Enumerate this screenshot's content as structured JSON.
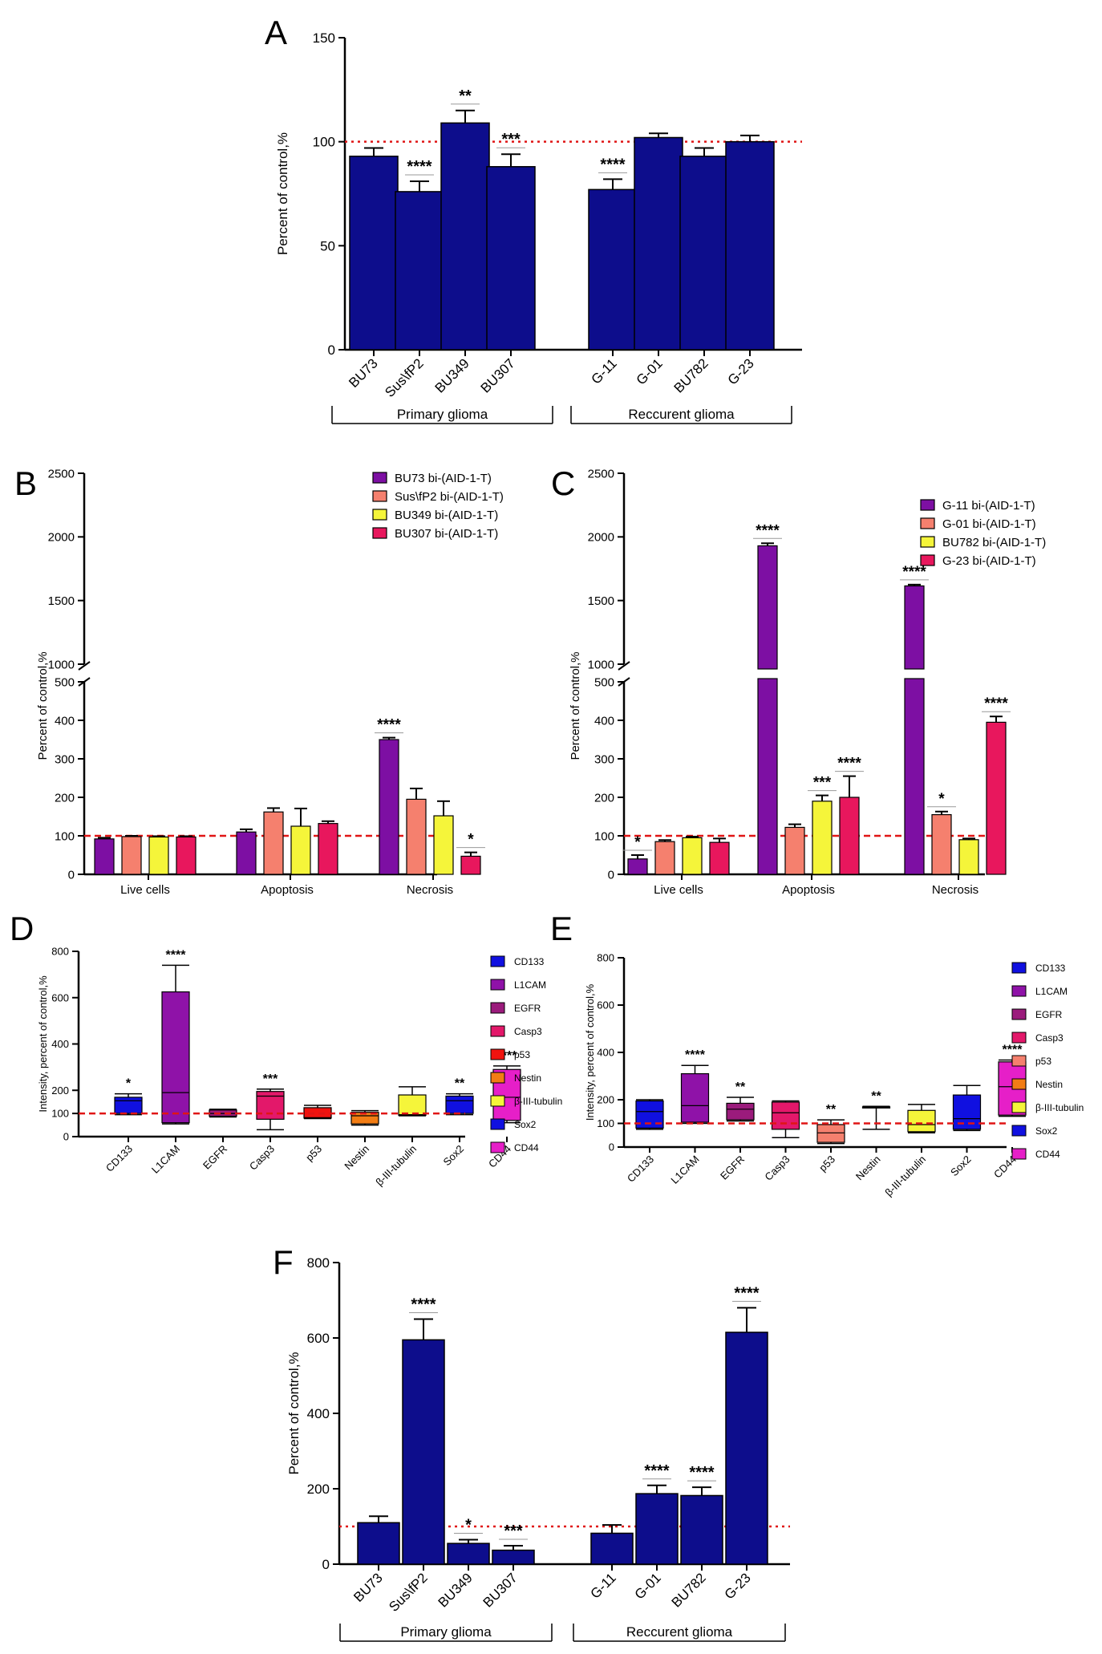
{
  "chart_data": [
    {
      "id": "A",
      "panel_label": "A",
      "type": "bar",
      "ylabel": "Percent of control,%",
      "ylim": [
        0,
        150
      ],
      "yticks": [
        0,
        50,
        100,
        150
      ],
      "reference_line": 100,
      "categories": [
        "BU73",
        "Sus\\fP2",
        "BU349",
        "BU307",
        "G-11",
        "G-01",
        "BU782",
        "G-23"
      ],
      "values": [
        93,
        76,
        109,
        88,
        77,
        102,
        93,
        100
      ],
      "errors": [
        4,
        5,
        6,
        6,
        5,
        2,
        4,
        3
      ],
      "significance": [
        "",
        "****",
        "**",
        "***",
        "****",
        "",
        "",
        ""
      ],
      "groups": [
        {
          "label": "Primary glioma",
          "members": [
            0,
            1,
            2,
            3
          ]
        },
        {
          "label": "Reccurent glioma",
          "members": [
            4,
            5,
            6,
            7
          ]
        }
      ],
      "color": "#0d0d8c"
    },
    {
      "id": "B",
      "panel_label": "B",
      "type": "bar",
      "ylabel": "Percent of control,%",
      "lower_ticks": [
        0,
        100,
        200,
        300,
        400,
        500
      ],
      "upper_ticks": [
        1000,
        1500,
        2000,
        2500
      ],
      "reference_line": 100,
      "categories": [
        "Live cells",
        "Apoptosis",
        "Necrosis"
      ],
      "series": [
        {
          "name": "BU73 bi-(AID-1-T)",
          "color": "#7d0fa3",
          "values": [
            92,
            110,
            350
          ],
          "errors": [
            3,
            7,
            5
          ],
          "significance": [
            "",
            "",
            "****"
          ]
        },
        {
          "name": "Sus\\fP2 bi-(AID-1-T)",
          "color": "#f5806e",
          "values": [
            98,
            162,
            195
          ],
          "errors": [
            2,
            10,
            28
          ],
          "significance": [
            "",
            "",
            ""
          ]
        },
        {
          "name": "BU349 bi-(AID-1-T)",
          "color": "#f5f53a",
          "values": [
            97,
            125,
            152
          ],
          "errors": [
            2,
            46,
            38
          ],
          "significance": [
            "",
            "",
            ""
          ]
        },
        {
          "name": "BU307 bi-(AID-1-T)",
          "color": "#e8175d",
          "values": [
            97,
            132,
            47
          ],
          "errors": [
            2,
            6,
            10
          ],
          "significance": [
            "",
            "",
            "*"
          ]
        }
      ]
    },
    {
      "id": "C",
      "panel_label": "C",
      "type": "bar",
      "ylabel": "Percent of control,%",
      "lower_ticks": [
        0,
        100,
        200,
        300,
        400,
        500
      ],
      "upper_ticks": [
        1000,
        1500,
        2000,
        2500
      ],
      "reference_line": 100,
      "categories": [
        "Live cells",
        "Apoptosis",
        "Necrosis"
      ],
      "series": [
        {
          "name": "G-11 bi-(AID-1-T)",
          "color": "#7d0fa3",
          "values": [
            40,
            1930,
            1615
          ],
          "errors": [
            10,
            20,
            10
          ],
          "significance": [
            "*",
            "****",
            "****"
          ]
        },
        {
          "name": "G-01 bi-(AID-1-T)",
          "color": "#f5806e",
          "values": [
            85,
            122,
            155
          ],
          "errors": [
            4,
            8,
            8
          ],
          "significance": [
            "",
            "",
            "*"
          ]
        },
        {
          "name": "BU782 bi-(AID-1-T)",
          "color": "#f5f53a",
          "values": [
            95,
            190,
            90
          ],
          "errors": [
            3,
            15,
            3
          ],
          "significance": [
            "",
            "***",
            ""
          ]
        },
        {
          "name": "G-23 bi-(AID-1-T)",
          "color": "#e8175d",
          "values": [
            83,
            200,
            395
          ],
          "errors": [
            10,
            55,
            15
          ],
          "significance": [
            "",
            "****",
            "****"
          ]
        }
      ]
    },
    {
      "id": "D",
      "panel_label": "D",
      "type": "box",
      "ylabel": "Intensity, percent of control,%",
      "ylim": [
        0,
        800
      ],
      "yticks": [
        0,
        100,
        200,
        400,
        600,
        800
      ],
      "reference_line": 100,
      "categories": [
        "CD133",
        "L1CAM",
        "EGFR",
        "Casp3",
        "p53",
        "Nestin",
        "β-III-tubulin",
        "Sox2",
        "CD44"
      ],
      "colors": [
        "#1010e0",
        "#8f12a8",
        "#9b1b7c",
        "#e3186a",
        "#f0130f",
        "#f27d14",
        "#f5f53a",
        "#1010e0",
        "#e61fc8"
      ],
      "boxes": [
        {
          "min": 95,
          "q1": 100,
          "median": 155,
          "q3": 170,
          "max": 185
        },
        {
          "min": 55,
          "q1": 60,
          "median": 190,
          "q3": 625,
          "max": 740
        },
        {
          "min": 85,
          "q1": 88,
          "median": 100,
          "q3": 115,
          "max": 118
        },
        {
          "min": 30,
          "q1": 75,
          "median": 175,
          "q3": 195,
          "max": 205
        },
        {
          "min": 78,
          "q1": 80,
          "median": 82,
          "q3": 125,
          "max": 135
        },
        {
          "min": 50,
          "q1": 55,
          "median": 90,
          "q3": 105,
          "max": 112
        },
        {
          "min": 90,
          "q1": 92,
          "median": 95,
          "q3": 180,
          "max": 215
        },
        {
          "min": 95,
          "q1": 100,
          "median": 155,
          "q3": 175,
          "max": 185
        },
        {
          "min": 60,
          "q1": 70,
          "median": 170,
          "q3": 290,
          "max": 305
        }
      ],
      "significance": [
        "*",
        "****",
        "",
        "***",
        "",
        "",
        "",
        "**",
        "****"
      ],
      "legend": [
        "CD133",
        "L1CAM",
        "EGFR",
        "Casp3",
        "p53",
        "Nestin",
        "β-III-tubulin",
        "Sox2",
        "CD44"
      ]
    },
    {
      "id": "E",
      "panel_label": "E",
      "type": "box",
      "ylabel": "Intensity, percent of control,%",
      "ylim": [
        0,
        800
      ],
      "yticks": [
        0,
        100,
        200,
        400,
        600,
        800
      ],
      "reference_line": 100,
      "categories": [
        "CD133",
        "L1CAM",
        "EGFR",
        "Casp3",
        "p53",
        "Nestin",
        "β-III-tubulin",
        "Sox2",
        "CD44"
      ],
      "colors": [
        "#1010e0",
        "#8f12a8",
        "#9b1b7c",
        "#e3186a",
        "#f5806e",
        "#f27d14",
        "#f5f53a",
        "#1010e0",
        "#e61fc8"
      ],
      "boxes": [
        {
          "min": 75,
          "q1": 80,
          "median": 150,
          "q3": 195,
          "max": 200
        },
        {
          "min": 100,
          "q1": 105,
          "median": 175,
          "q3": 310,
          "max": 345
        },
        {
          "min": 110,
          "q1": 115,
          "median": 160,
          "q3": 185,
          "max": 210
        },
        {
          "min": 40,
          "q1": 75,
          "median": 145,
          "q3": 190,
          "max": 195
        },
        {
          "min": 15,
          "q1": 20,
          "median": 60,
          "q3": 95,
          "max": 115
        },
        {
          "min": 75,
          "q1": 165,
          "median": 168,
          "q3": 170,
          "max": 172
        },
        {
          "min": 60,
          "q1": 65,
          "median": 95,
          "q3": 155,
          "max": 180
        },
        {
          "min": 70,
          "q1": 75,
          "median": 120,
          "q3": 220,
          "max": 260
        },
        {
          "min": 130,
          "q1": 135,
          "median": 255,
          "q3": 360,
          "max": 368
        }
      ],
      "significance": [
        "",
        "****",
        "**",
        "",
        "**",
        "**",
        "",
        "",
        "****"
      ],
      "legend": [
        "CD133",
        "L1CAM",
        "EGFR",
        "Casp3",
        "p53",
        "Nestin",
        "β-III-tubulin",
        "Sox2",
        "CD44"
      ]
    },
    {
      "id": "F",
      "panel_label": "F",
      "type": "bar",
      "ylabel": "Percent of control,%",
      "ylim": [
        0,
        800
      ],
      "yticks": [
        0,
        200,
        400,
        600,
        800
      ],
      "reference_line": 100,
      "categories": [
        "BU73",
        "Sus\\fP2",
        "BU349",
        "BU307",
        "G-11",
        "G-01",
        "BU782",
        "G-23"
      ],
      "values": [
        110,
        595,
        55,
        37,
        82,
        187,
        182,
        615
      ],
      "errors": [
        17,
        55,
        10,
        12,
        22,
        22,
        22,
        65
      ],
      "significance": [
        "",
        "****",
        "*",
        "***",
        "",
        "****",
        "****",
        "****"
      ],
      "groups": [
        {
          "label": "Primary glioma",
          "members": [
            0,
            1,
            2,
            3
          ]
        },
        {
          "label": "Reccurent glioma",
          "members": [
            4,
            5,
            6,
            7
          ]
        }
      ],
      "color": "#0d0d8c"
    }
  ]
}
